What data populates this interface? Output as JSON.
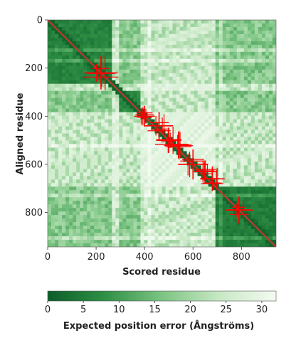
{
  "chart_data": {
    "type": "heatmap",
    "xlabel": "Scored residue",
    "ylabel": "Aligned residue",
    "x_range": [
      0,
      943
    ],
    "y_range": [
      0,
      943
    ],
    "x_ticks": [
      0,
      200,
      400,
      600,
      800
    ],
    "y_ticks": [
      0,
      200,
      400,
      600,
      800
    ],
    "colorbar": {
      "label": "Expected position error (Ångströms)",
      "range": [
        0,
        32
      ],
      "ticks": [
        0,
        5,
        10,
        15,
        20,
        25,
        30
      ],
      "low_color": "#0b5e28",
      "high_color": "#f4fbf2"
    },
    "diagonal_color": "#c0392b",
    "cross_color": "#ff0000",
    "domain_blocks": [
      {
        "start": 0,
        "end": 260,
        "pae": 4
      },
      {
        "start": 300,
        "end": 380,
        "pae": 5
      },
      {
        "start": 690,
        "end": 943,
        "pae": 3
      }
    ],
    "crosshair_markers": [
      {
        "x": 220,
        "y": 220
      },
      {
        "x": 400,
        "y": 400
      },
      {
        "x": 460,
        "y": 440
      },
      {
        "x": 500,
        "y": 500
      },
      {
        "x": 540,
        "y": 520
      },
      {
        "x": 600,
        "y": 600
      },
      {
        "x": 650,
        "y": 630
      },
      {
        "x": 680,
        "y": 660
      },
      {
        "x": 790,
        "y": 790
      }
    ]
  }
}
